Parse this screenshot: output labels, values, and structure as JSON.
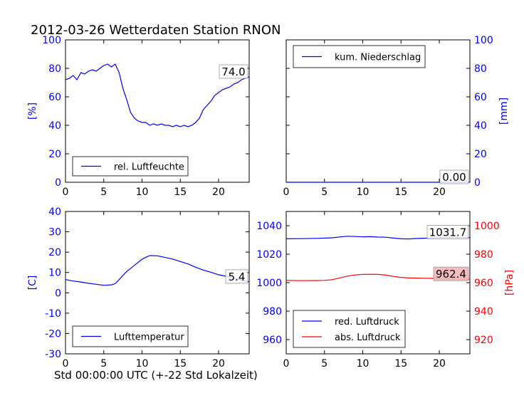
{
  "figure": {
    "title": "2012-03-26 Wetterdaten Station RNON",
    "xlabel": "Std 00:00:00 UTC (+-22 Std Lokalzeit)"
  },
  "colors": {
    "blue": "#0000ff",
    "red": "#ff0000",
    "annot_bg_red": "#f4b6b6"
  },
  "chart_data": [
    {
      "type": "line",
      "xlim": [
        0,
        24
      ],
      "ylim": [
        0,
        100
      ],
      "xticks": [
        0,
        5,
        10,
        15,
        20
      ],
      "yticks": [
        0,
        20,
        40,
        60,
        80,
        100
      ],
      "ylabel": "[%]",
      "ylabel_color": "blue",
      "legend_position": "lower-left",
      "annotation": "74.0",
      "series": [
        {
          "name": "rel. Luftfeuchte",
          "color": "blue",
          "x": [
            0,
            0.5,
            1,
            1.5,
            2,
            2.5,
            3,
            3.5,
            4,
            4.5,
            5,
            5.5,
            6,
            6.5,
            7,
            7.5,
            8,
            8.5,
            9,
            9.5,
            10,
            10.5,
            11,
            11.5,
            12,
            12.5,
            13,
            13.5,
            14,
            14.5,
            15,
            15.5,
            16,
            16.5,
            17,
            17.5,
            18,
            18.5,
            19,
            19.5,
            20,
            20.5,
            21,
            21.5,
            22,
            22.5,
            23,
            23.5,
            24
          ],
          "y": [
            72,
            73,
            75,
            72,
            77,
            76,
            78,
            79,
            78,
            80,
            82,
            83,
            81,
            83,
            77,
            66,
            58,
            49,
            45,
            43,
            42,
            42,
            40,
            41,
            40,
            41,
            40,
            40,
            39,
            40,
            39,
            40,
            39,
            40,
            42,
            45,
            51,
            54,
            57,
            61,
            63,
            65,
            66,
            67,
            69,
            70,
            72,
            73,
            74
          ]
        }
      ]
    },
    {
      "type": "line",
      "xlim": [
        0,
        24
      ],
      "ylim": [
        0,
        100
      ],
      "xticks": [
        0,
        5,
        10,
        15,
        20
      ],
      "yticks": [
        0,
        20,
        40,
        60,
        80,
        100
      ],
      "ylabel": "[mm]",
      "ylabel_color": "blue",
      "yaxis_side": "right",
      "legend_position": "upper-left",
      "annotation": "0.00",
      "series": [
        {
          "name": "kum. Niederschlag",
          "color": "blue",
          "x": [
            0,
            24
          ],
          "y": [
            0,
            0
          ]
        }
      ]
    },
    {
      "type": "line",
      "xlim": [
        0,
        24
      ],
      "ylim": [
        -30,
        40
      ],
      "xticks": [
        0,
        5,
        10,
        15,
        20
      ],
      "yticks": [
        -30,
        -20,
        -10,
        0,
        10,
        20,
        30,
        40
      ],
      "ylabel": "[C]",
      "ylabel_color": "blue",
      "legend_position": "lower-left",
      "annotation": "5.4",
      "series": [
        {
          "name": "Lufttemperatur",
          "color": "blue",
          "x": [
            0,
            1,
            2,
            3,
            4,
            5,
            6,
            6.5,
            7,
            7.5,
            8,
            9,
            10,
            10.5,
            11,
            12,
            13,
            14,
            15,
            16,
            17,
            18,
            19,
            20,
            21,
            22,
            23,
            24
          ],
          "y": [
            6.5,
            5.8,
            5.3,
            4.7,
            4.2,
            3.7,
            3.9,
            4.5,
            6.5,
            8.5,
            10.5,
            13.5,
            16.5,
            17.5,
            18.3,
            18.2,
            17.4,
            16.6,
            15.4,
            14.2,
            12.6,
            11.2,
            10.1,
            8.9,
            8.1,
            7.2,
            6.3,
            5.4
          ]
        }
      ]
    },
    {
      "type": "line",
      "xlim": [
        0,
        24
      ],
      "ylim": [
        950,
        1050
      ],
      "xticks": [
        0,
        5,
        10,
        15,
        20
      ],
      "yticks": [
        960,
        980,
        1000,
        1020,
        1040
      ],
      "secondary_ylim": [
        910,
        1010
      ],
      "secondary_yticks": [
        920,
        940,
        960,
        980,
        1000
      ],
      "secondary_ylabel": "[hPa]",
      "secondary_ylabel_color": "red",
      "legend_position": "lower-left",
      "annotations": [
        "1031.7",
        "962.4"
      ],
      "series": [
        {
          "name": "red. Luftdruck",
          "color": "blue",
          "axis": "left",
          "x": [
            0,
            2,
            4,
            6,
            7,
            8,
            9,
            10,
            11,
            12,
            13,
            14,
            15,
            16,
            17,
            18,
            19,
            20,
            21,
            22,
            23,
            24
          ],
          "y": [
            1030.8,
            1030.9,
            1031.1,
            1031.5,
            1032.1,
            1032.6,
            1032.4,
            1032.2,
            1032.3,
            1032.0,
            1031.9,
            1031.3,
            1030.8,
            1030.7,
            1031.0,
            1031.2,
            1031.4,
            1031.6,
            1031.7,
            1031.8,
            1031.7,
            1031.7
          ]
        },
        {
          "name": "abs. Luftdruck",
          "color": "red",
          "axis": "right",
          "x": [
            0,
            2,
            4,
            5,
            6,
            7,
            8,
            9,
            10,
            11,
            12,
            13,
            14,
            15,
            16,
            17,
            18,
            19,
            20,
            21,
            22,
            23,
            24
          ],
          "y": [
            961.6,
            961.4,
            961.5,
            961.6,
            962.1,
            963.3,
            964.6,
            965.4,
            965.8,
            965.9,
            965.8,
            965.3,
            964.4,
            963.7,
            963.3,
            963.2,
            963.1,
            963.0,
            962.8,
            962.6,
            962.5,
            962.4,
            962.4
          ]
        }
      ]
    }
  ]
}
